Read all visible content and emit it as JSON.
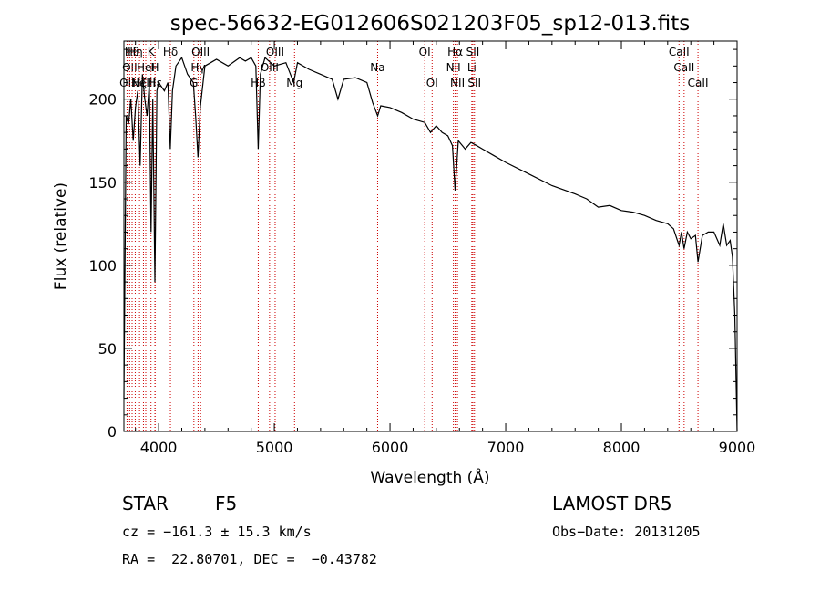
{
  "chart_data": {
    "type": "line",
    "title": "spec-56632-EG012606S021203F05_sp12-013.fits",
    "xlabel": "Wavelength (Å)",
    "ylabel": "Flux (relative)",
    "xlim": [
      3700,
      9000
    ],
    "ylim": [
      0,
      235
    ],
    "x_ticks": [
      4000,
      5000,
      6000,
      7000,
      8000,
      9000
    ],
    "y_ticks": [
      0,
      50,
      100,
      150,
      200
    ],
    "grid": false,
    "line_color": "#000000",
    "marker_color": "#cc0000",
    "series": [
      {
        "x": [
          3700,
          3720,
          3740,
          3760,
          3780,
          3800,
          3820,
          3840,
          3860,
          3880,
          3900,
          3920,
          3935,
          3950,
          3968,
          3985,
          4000,
          4050,
          4080,
          4101,
          4120,
          4150,
          4200,
          4250,
          4300,
          4320,
          4340,
          4360,
          4400,
          4450,
          4500,
          4600,
          4700,
          4750,
          4800,
          4840,
          4861,
          4880,
          4920,
          5000,
          5100,
          5167,
          5200,
          5300,
          5400,
          5500,
          5550,
          5600,
          5700,
          5800,
          5850,
          5893,
          5920,
          6000,
          6100,
          6200,
          6300,
          6350,
          6400,
          6450,
          6500,
          6540,
          6563,
          6590,
          6650,
          6700,
          6750,
          6800,
          6900,
          7000,
          7200,
          7400,
          7600,
          7700,
          7800,
          7900,
          8000,
          8100,
          8200,
          8300,
          8400,
          8450,
          8498,
          8520,
          8542,
          8570,
          8600,
          8640,
          8662,
          8700,
          8750,
          8800,
          8850,
          8880,
          8910,
          8940,
          8960,
          8980,
          9000
        ],
        "y": [
          20,
          190,
          185,
          200,
          175,
          195,
          205,
          160,
          215,
          200,
          190,
          210,
          120,
          200,
          90,
          205,
          210,
          205,
          210,
          170,
          205,
          220,
          225,
          215,
          210,
          190,
          165,
          195,
          220,
          222,
          224,
          220,
          225,
          223,
          225,
          220,
          170,
          215,
          225,
          220,
          222,
          210,
          222,
          218,
          215,
          212,
          200,
          212,
          213,
          210,
          198,
          190,
          196,
          195,
          192,
          188,
          186,
          180,
          184,
          180,
          178,
          172,
          145,
          175,
          170,
          174,
          172,
          170,
          166,
          162,
          155,
          148,
          143,
          140,
          135,
          136,
          133,
          132,
          130,
          127,
          125,
          122,
          112,
          120,
          110,
          120,
          116,
          118,
          102,
          118,
          120,
          120,
          112,
          125,
          112,
          115,
          105,
          70,
          0
        ]
      }
    ],
    "lines": [
      {
        "w": 3727,
        "l": "OII",
        "row": 3
      },
      {
        "w": 3750,
        "l": "OII",
        "row": 2
      },
      {
        "w": 3771,
        "l": "Hθ",
        "row": 1
      },
      {
        "w": 3798,
        "l": "Hη",
        "row": 1
      },
      {
        "w": 3835,
        "l": "Hζ",
        "row": 3
      },
      {
        "w": 3869,
        "l": "NeIII",
        "row": 3
      },
      {
        "w": 3889,
        "l": "HeI",
        "row": 2
      },
      {
        "w": 3934,
        "l": "K",
        "row": 1
      },
      {
        "w": 3968,
        "l": "H",
        "row": 2
      },
      {
        "w": 3970,
        "l": "Hε",
        "row": 3
      },
      {
        "w": 4102,
        "l": "Hδ",
        "row": 1
      },
      {
        "w": 4305,
        "l": "G",
        "row": 3
      },
      {
        "w": 4341,
        "l": "Hγ",
        "row": 2
      },
      {
        "w": 4363,
        "l": "OIII",
        "row": 1
      },
      {
        "w": 4861,
        "l": "Hβ",
        "row": 3
      },
      {
        "w": 4959,
        "l": "OIII",
        "row": 2
      },
      {
        "w": 5007,
        "l": "OIII",
        "row": 1
      },
      {
        "w": 5175,
        "l": "Mg",
        "row": 3
      },
      {
        "w": 5893,
        "l": "Na",
        "row": 2
      },
      {
        "w": 6300,
        "l": "OI",
        "row": 1
      },
      {
        "w": 6364,
        "l": "OI",
        "row": 3
      },
      {
        "w": 6548,
        "l": "NII",
        "row": 2
      },
      {
        "w": 6563,
        "l": "Hα",
        "row": 1
      },
      {
        "w": 6583,
        "l": "NII",
        "row": 3
      },
      {
        "w": 6707,
        "l": "Li",
        "row": 2
      },
      {
        "w": 6716,
        "l": "SII",
        "row": 1
      },
      {
        "w": 6730,
        "l": "SII",
        "row": 3
      },
      {
        "w": 8498,
        "l": "CaII",
        "row": 1
      },
      {
        "w": 8542,
        "l": "CaII",
        "row": 2
      },
      {
        "w": 8662,
        "l": "CaII",
        "row": 3
      }
    ]
  },
  "info": {
    "class_label": "STAR",
    "subclass": "F5",
    "survey": "LAMOST DR5",
    "cz": "cz = −161.3 ± 15.3 km/s",
    "obs_date": "Obs−Date: 20131205",
    "coords": "RA =  22.80701, DEC =  −0.43782"
  }
}
